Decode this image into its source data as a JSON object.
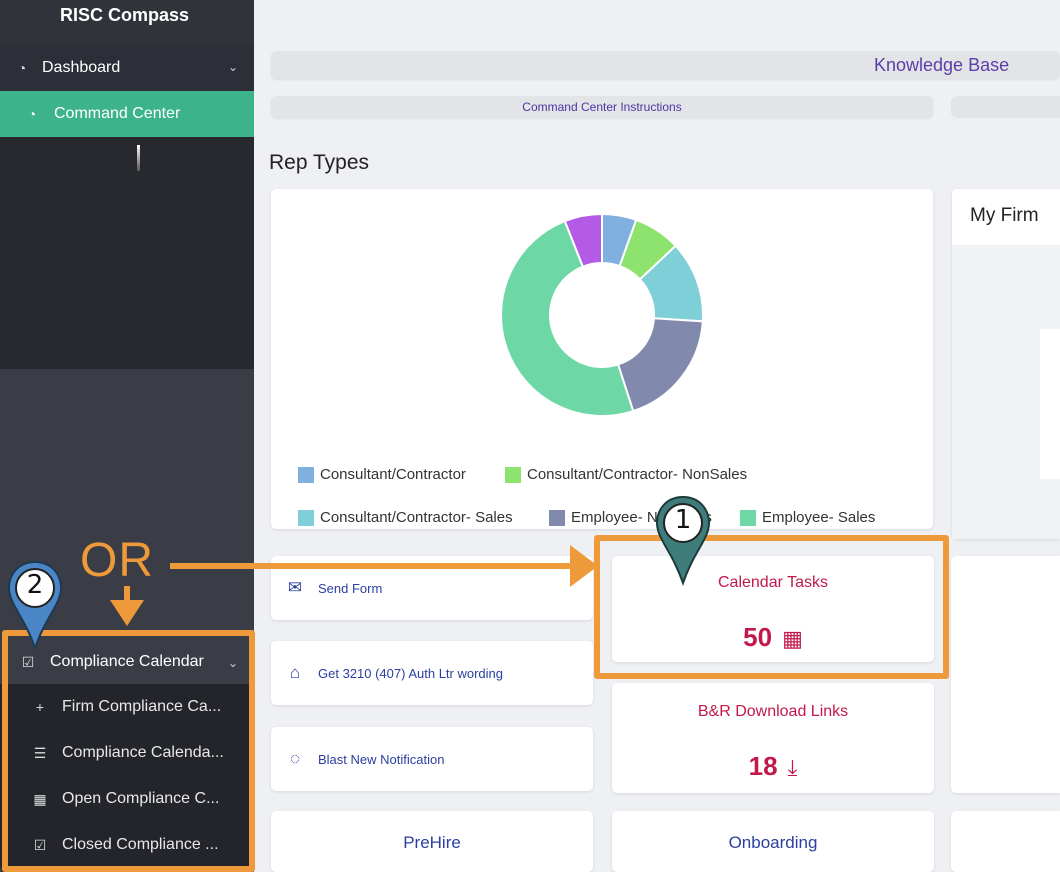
{
  "sidebar": {
    "brand": "RISC Compass",
    "dashboard": {
      "label": "Dashboard",
      "icon": "gauge-icon"
    },
    "command_center": {
      "label": "Command Center",
      "icon": "gauge-icon"
    },
    "compliance_calendar": {
      "label": "Compliance Calendar",
      "icon": "calendar-check-icon"
    },
    "sub_items": [
      {
        "label": "Firm Compliance Ca...",
        "icon": "plus-icon"
      },
      {
        "label": "Compliance Calenda...",
        "icon": "list-icon"
      },
      {
        "label": "Open Compliance C...",
        "icon": "calendar-icon"
      },
      {
        "label": "Closed Compliance ...",
        "icon": "calendar-check-icon"
      }
    ]
  },
  "main": {
    "knowledge_base": "Knowledge Base",
    "command_center_instructions": "Command Center Instructions",
    "rep_types_title": "Rep Types",
    "my_firm_title": "My Firm",
    "links": [
      {
        "label": "Send Form",
        "icon": "envelope-icon"
      },
      {
        "label": "Get 3210 (407) Auth Ltr wording",
        "icon": "bank-icon"
      },
      {
        "label": "Blast New Notification",
        "icon": "chat-bubble-icon"
      }
    ],
    "calendar_tasks": {
      "title": "Calendar Tasks",
      "value": "50",
      "icon": "calendar-icon"
    },
    "download_links": {
      "title": "B&R Download Links",
      "value": "18",
      "icon": "download-icon"
    },
    "bottom": {
      "prehire": "PreHire",
      "onboarding": "Onboarding"
    }
  },
  "annotation": {
    "or_text": "OR",
    "pin_1": "1",
    "pin_2": "2",
    "color": "#ee9a3a",
    "pin_color": "#3f7d7d"
  },
  "chart_data": {
    "type": "pie",
    "title": "Rep Types",
    "donut": true,
    "legend_position": "bottom",
    "slices": [
      {
        "name": "Consultant/Contractor",
        "value": 5.5,
        "color": "#7fb0e0"
      },
      {
        "name": "Consultant/Contractor- NonSales",
        "value": 7.5,
        "color": "#8ee36e"
      },
      {
        "name": "Consultant/Contractor- Sales",
        "value": 13,
        "color": "#7fcfd9"
      },
      {
        "name": "Employee- NonSales",
        "value": 19,
        "color": "#8189ad"
      },
      {
        "name": "Employee- Sales",
        "value": 49,
        "color": "#6dd8a6"
      },
      {
        "name": "",
        "value": 6,
        "color": "#b35be6"
      }
    ],
    "legend_visible": [
      "Consultant/Contractor",
      "Consultant/Contractor- NonSales",
      "Consultant/Contractor- Sales",
      "Employee- NonSales",
      "Employee- Sales"
    ]
  }
}
